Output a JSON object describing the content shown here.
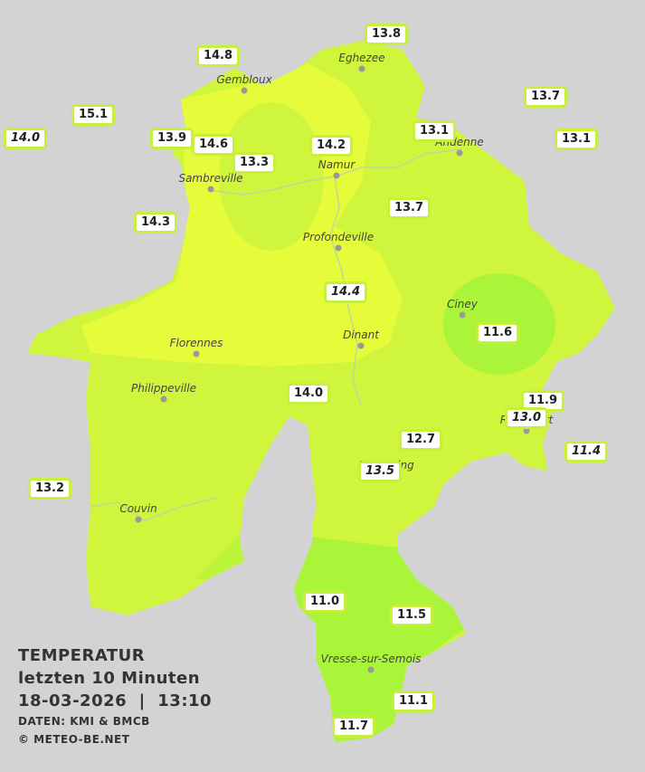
{
  "title": {
    "lines": [
      "TEMPERATUR",
      "letzten 10 Minuten",
      "18-03-2026  |  13:10"
    ],
    "credits": [
      "DATEN: KMI & BMCB",
      "© METEO-BE.NET"
    ]
  },
  "cities": [
    "Eghezee",
    "Gembloux",
    "Andenne",
    "Namur",
    "Sambreville",
    "Profondeville",
    "Ciney",
    "Dinant",
    "Florennes",
    "Philippeville",
    "Rochefort",
    "Beauraing",
    "Couvin",
    "Vresse-sur-Semois"
  ],
  "stations": [
    {
      "label": "13.8",
      "italic": false
    },
    {
      "label": "14.8",
      "italic": false
    },
    {
      "label": "13.7",
      "italic": false
    },
    {
      "label": "15.1",
      "italic": false
    },
    {
      "label": "14.0",
      "italic": true
    },
    {
      "label": "13.9",
      "italic": false
    },
    {
      "label": "14.6",
      "italic": false
    },
    {
      "label": "13.1",
      "italic": false
    },
    {
      "label": "13.1",
      "italic": false
    },
    {
      "label": "14.2",
      "italic": false
    },
    {
      "label": "13.3",
      "italic": false
    },
    {
      "label": "13.7",
      "italic": false
    },
    {
      "label": "14.3",
      "italic": false
    },
    {
      "label": "14.4",
      "italic": true
    },
    {
      "label": "11.6",
      "italic": false
    },
    {
      "label": "14.0",
      "italic": false
    },
    {
      "label": "11.9",
      "italic": false
    },
    {
      "label": "13.0",
      "italic": true
    },
    {
      "label": "12.7",
      "italic": false
    },
    {
      "label": "11.4",
      "italic": true
    },
    {
      "label": "13.5",
      "italic": true
    },
    {
      "label": "13.2",
      "italic": false
    },
    {
      "label": "11.0",
      "italic": false
    },
    {
      "label": "11.5",
      "italic": false
    },
    {
      "label": "11.1",
      "italic": false
    },
    {
      "label": "11.7",
      "italic": false
    }
  ]
}
